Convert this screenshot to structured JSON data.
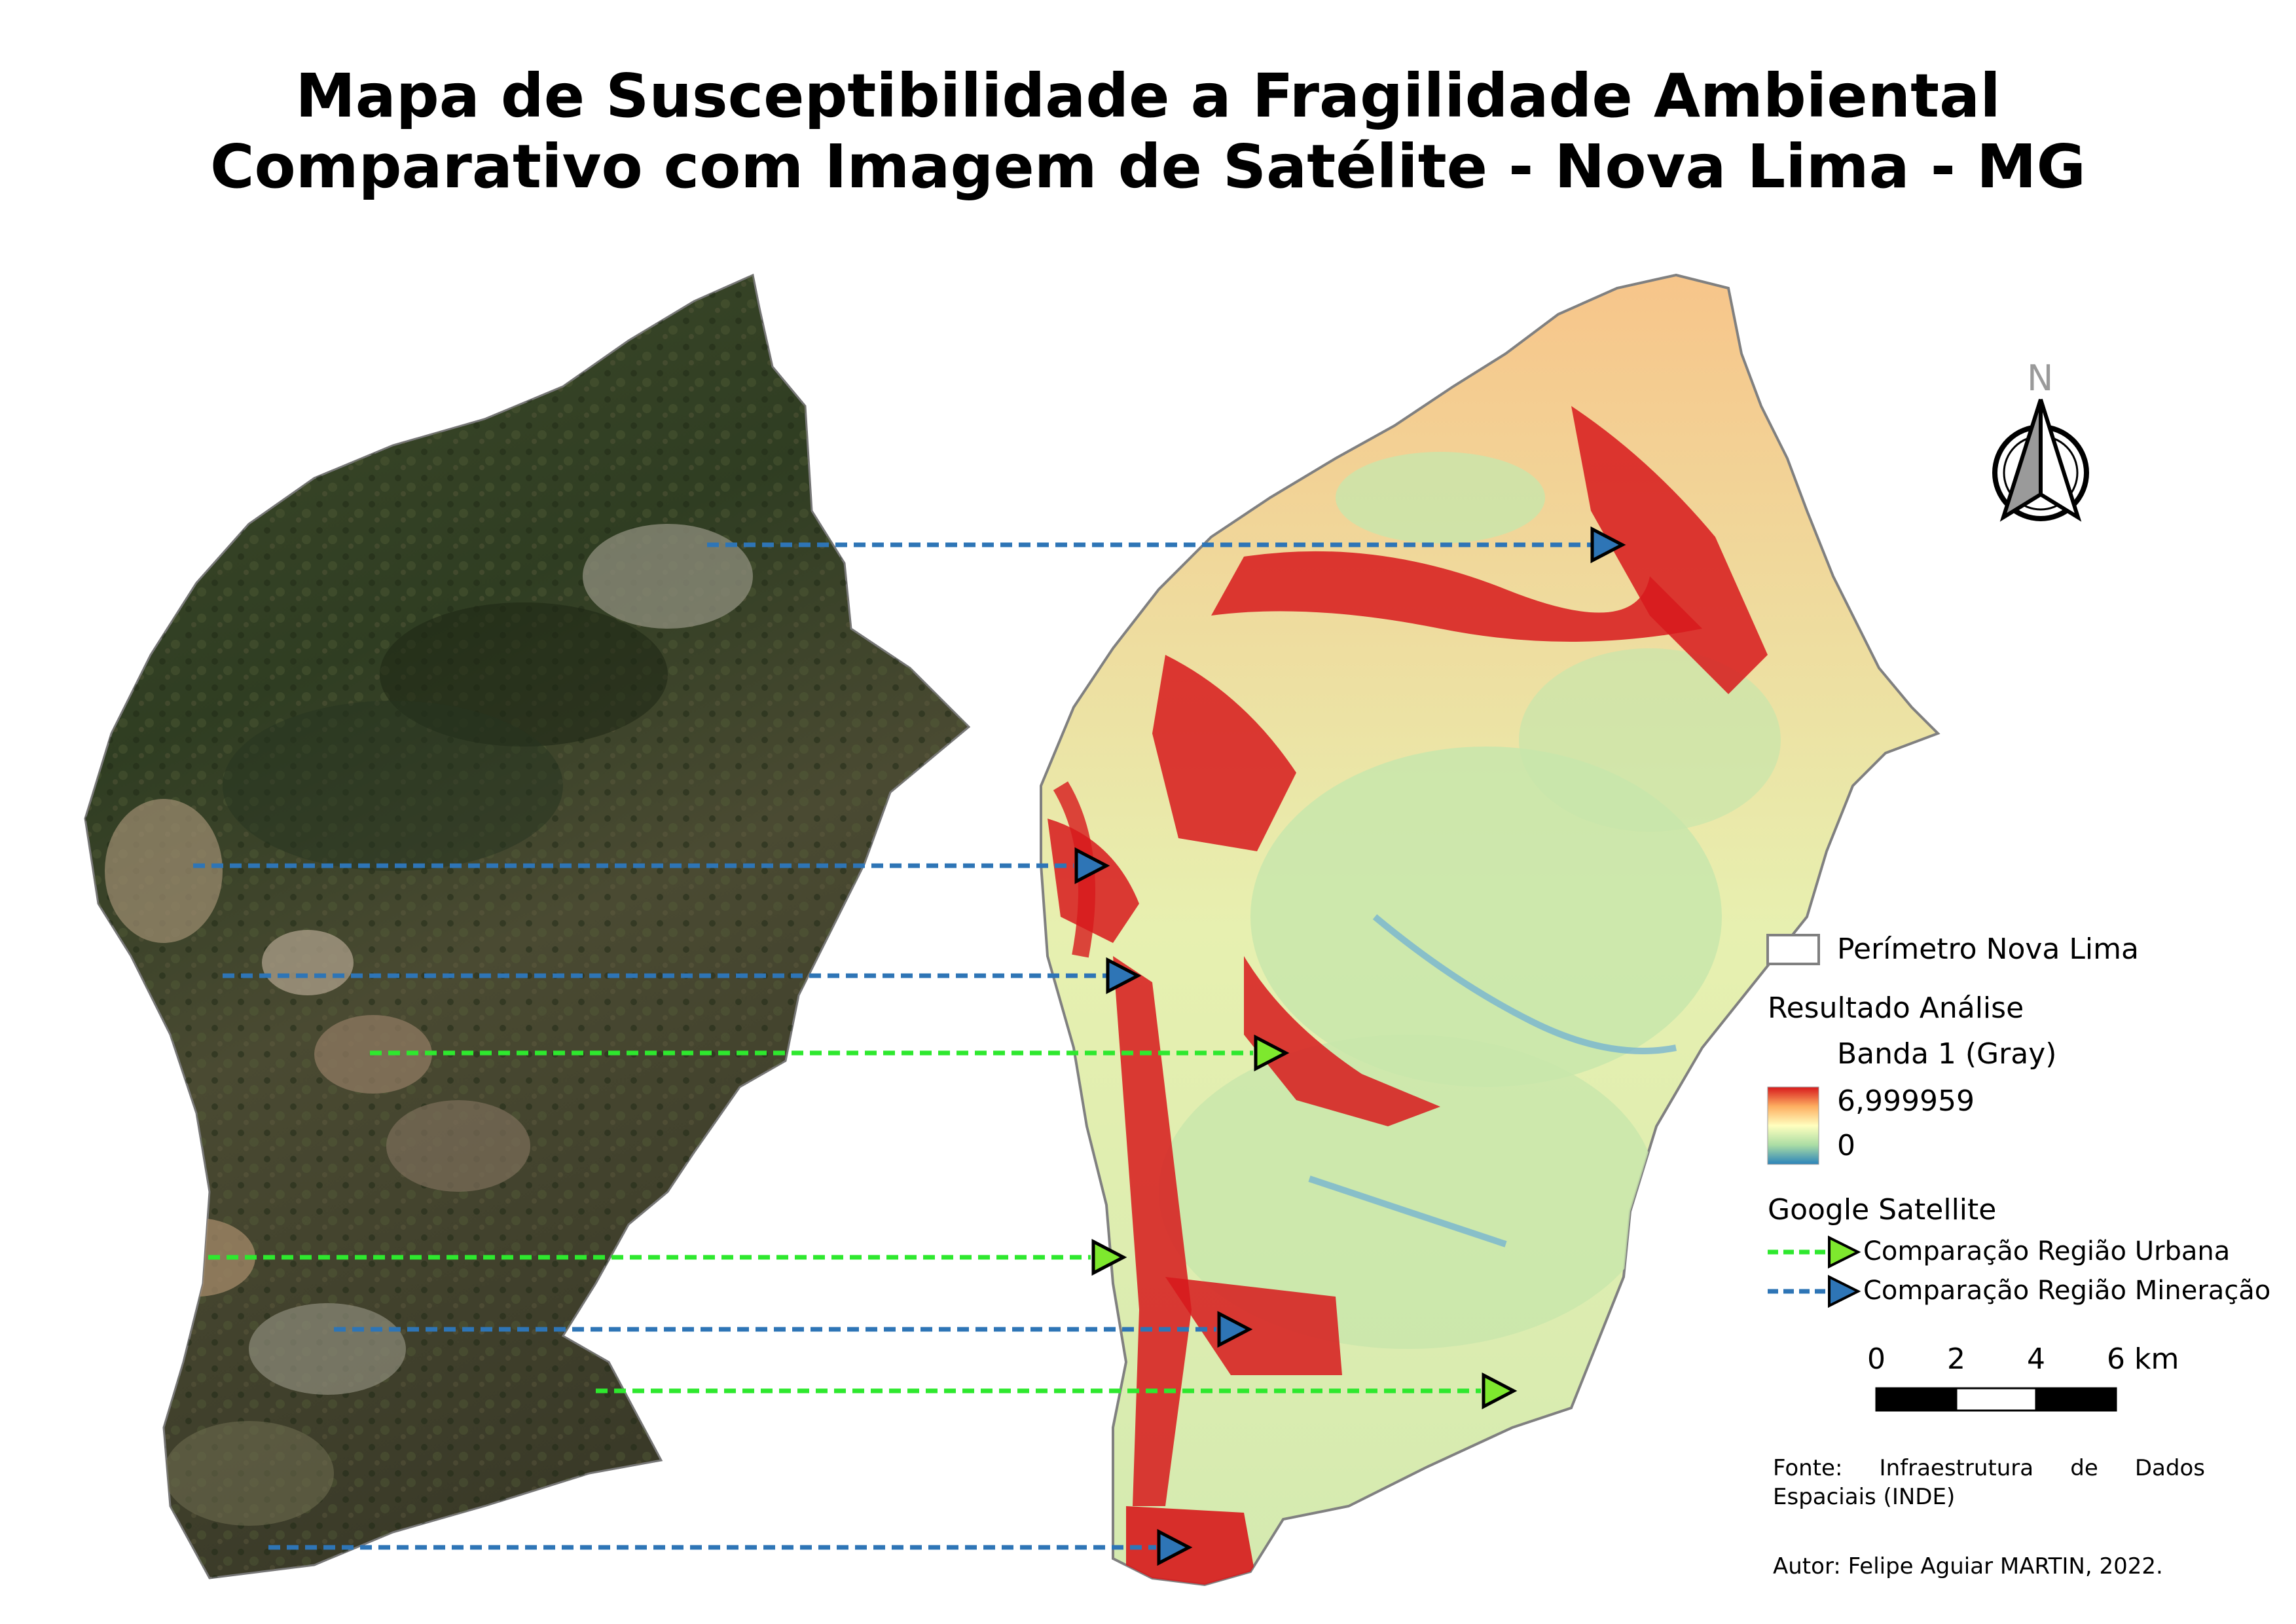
{
  "title": {
    "line1": "Mapa de Susceptibilidade a Fragilidade Ambiental",
    "line2": "Comparativo com Imagem de Satélite - Nova Lima - MG"
  },
  "north_arrow": {
    "label": "N"
  },
  "legend": {
    "perimeter_label": "Perímetro Nova Lima",
    "result_header": "Resultado Análise",
    "band_label": "Banda 1 (Gray)",
    "ramp_max": "6,999959",
    "ramp_min": "0",
    "ramp_colors": [
      "#d7191c",
      "#fdae61",
      "#ffffbf",
      "#abdda4",
      "#2b83ba"
    ],
    "satellite_header": "Google Satellite",
    "urban_label": "Comparação Região Urbana",
    "mining_label": "Comparação Região Mineração",
    "urban_color": "#2ee82e",
    "mining_color": "#2e75b6"
  },
  "scalebar": {
    "ticks": [
      "0",
      "2",
      "4",
      "6 km"
    ]
  },
  "source": "Fonte: Infraestrutura de Dados Espaciais (INDE)",
  "author": "Autor: Felipe Aguiar MARTIN, 2022."
}
